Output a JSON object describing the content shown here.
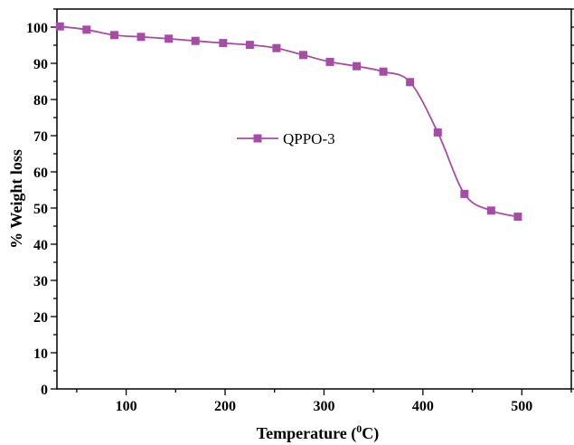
{
  "chart_data": {
    "type": "line",
    "xlabel": "Temperature (",
    "xlabel_sup": "0",
    "xlabel_tail": "C)",
    "ylabel": "% Weight loss",
    "xlim": [
      30,
      550
    ],
    "ylim": [
      0,
      105
    ],
    "xticks": [
      100,
      200,
      300,
      400,
      500
    ],
    "yticks": [
      0,
      10,
      20,
      30,
      40,
      50,
      60,
      70,
      80,
      90,
      100
    ],
    "legend_position": "center",
    "grid": false,
    "series": [
      {
        "name": "QPPO-3",
        "color": "#a64ca6",
        "marker": "square",
        "x": [
          33,
          60,
          88,
          115,
          143,
          170,
          198,
          225,
          252,
          279,
          306,
          333,
          360,
          387,
          415,
          442,
          469,
          496
        ],
        "y": [
          100.2,
          99.3,
          97.8,
          97.3,
          96.8,
          96.2,
          95.6,
          95.1,
          94.2,
          92.3,
          90.4,
          89.2,
          87.7,
          84.8,
          70.9,
          53.9,
          49.3,
          47.6
        ]
      }
    ]
  }
}
